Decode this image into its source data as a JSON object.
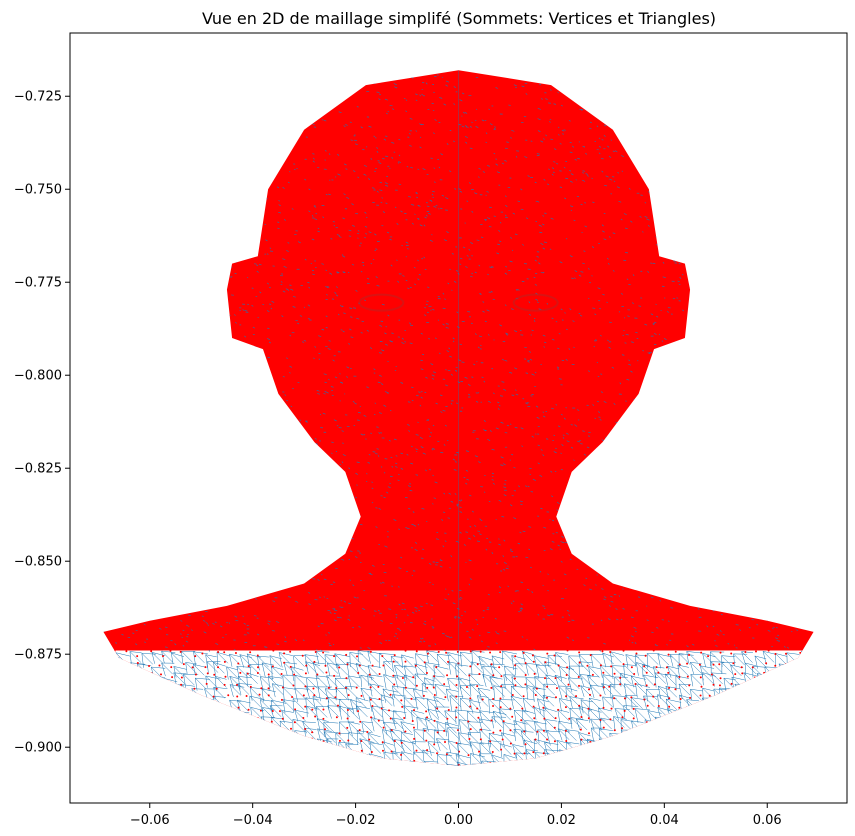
{
  "chart_data": {
    "type": "scatter",
    "title": "Vue en 2D de maillage simplifé (Sommets: Vertices et Triangles)",
    "xlabel": "",
    "ylabel": "",
    "xlim": [
      -0.0755,
      0.0755
    ],
    "ylim": [
      -0.915,
      -0.708
    ],
    "x_ticks": [
      -0.06,
      -0.04,
      -0.02,
      0.0,
      0.02,
      0.04,
      0.06
    ],
    "x_tick_labels": [
      "−0.06",
      "−0.04",
      "−0.02",
      "0.00",
      "0.02",
      "0.04",
      "0.06"
    ],
    "y_ticks": [
      -0.725,
      -0.75,
      -0.775,
      -0.8,
      -0.825,
      -0.85,
      -0.875,
      -0.9
    ],
    "y_tick_labels": [
      "−0.725",
      "−0.750",
      "−0.775",
      "−0.800",
      "−0.825",
      "−0.850",
      "−0.875",
      "−0.900"
    ],
    "grid": false,
    "series": [
      {
        "kind": "vertices",
        "color": "#ff0000",
        "outline": [
          [
            0.0,
            -0.718
          ],
          [
            0.018,
            -0.722
          ],
          [
            0.03,
            -0.734
          ],
          [
            0.037,
            -0.75
          ],
          [
            0.039,
            -0.768
          ],
          [
            0.044,
            -0.77
          ],
          [
            0.045,
            -0.777
          ],
          [
            0.044,
            -0.79
          ],
          [
            0.038,
            -0.793
          ],
          [
            0.035,
            -0.805
          ],
          [
            0.028,
            -0.818
          ],
          [
            0.022,
            -0.826
          ],
          [
            0.019,
            -0.838
          ],
          [
            0.022,
            -0.848
          ],
          [
            0.03,
            -0.856
          ],
          [
            0.045,
            -0.862
          ],
          [
            0.06,
            -0.866
          ],
          [
            0.069,
            -0.869
          ],
          [
            0.066,
            -0.876
          ],
          [
            0.05,
            -0.886
          ],
          [
            0.03,
            -0.897
          ],
          [
            0.015,
            -0.903
          ],
          [
            0.0,
            -0.905
          ],
          [
            -0.015,
            -0.903
          ],
          [
            -0.03,
            -0.897
          ],
          [
            -0.05,
            -0.886
          ],
          [
            -0.066,
            -0.876
          ],
          [
            -0.069,
            -0.869
          ],
          [
            -0.06,
            -0.866
          ],
          [
            -0.045,
            -0.862
          ],
          [
            -0.03,
            -0.856
          ],
          [
            -0.022,
            -0.848
          ],
          [
            -0.019,
            -0.838
          ],
          [
            -0.022,
            -0.826
          ],
          [
            -0.028,
            -0.818
          ],
          [
            -0.035,
            -0.805
          ],
          [
            -0.038,
            -0.793
          ],
          [
            -0.044,
            -0.79
          ],
          [
            -0.045,
            -0.777
          ],
          [
            -0.044,
            -0.77
          ],
          [
            -0.039,
            -0.768
          ],
          [
            -0.037,
            -0.75
          ],
          [
            -0.03,
            -0.734
          ],
          [
            -0.018,
            -0.722
          ]
        ],
        "sparse_region_below_y": -0.874
      },
      {
        "kind": "triangles",
        "color": "#1f77b4"
      }
    ]
  }
}
